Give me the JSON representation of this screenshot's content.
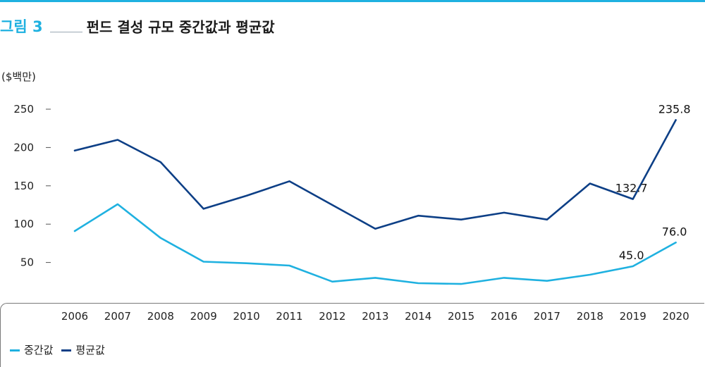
{
  "colors": {
    "accent": "#1fb1e0",
    "median": "#1fb1e0",
    "mean": "#0d3f86"
  },
  "header": {
    "figure_label": "그림 3",
    "title": "펀드 결성 규모 중간값과 평균값"
  },
  "chart_data": {
    "type": "line",
    "unit_label": "($백만)",
    "x": [
      "2006",
      "2007",
      "2008",
      "2009",
      "2010",
      "2011",
      "2012",
      "2013",
      "2014",
      "2015",
      "2016",
      "2017",
      "2018",
      "2019",
      "2020"
    ],
    "y_ticks": [
      "250",
      "200",
      "150",
      "100",
      "50"
    ],
    "series": [
      {
        "name": "중간값",
        "color": "#1fb1e0",
        "values": [
          91,
          126,
          82,
          51,
          49,
          46,
          25,
          30,
          23,
          22,
          30,
          26,
          34,
          45.0,
          76.0
        ],
        "labels": [
          {
            "index": 13,
            "text": "45.0"
          },
          {
            "index": 14,
            "text": "76.0"
          }
        ]
      },
      {
        "name": "평균값",
        "color": "#0d3f86",
        "values": [
          196,
          210,
          181,
          120,
          137,
          156,
          125,
          94,
          111,
          106,
          115,
          106,
          153,
          132.7,
          235.8
        ],
        "labels": [
          {
            "index": 13,
            "text": "132.7"
          },
          {
            "index": 14,
            "text": "235.8"
          }
        ]
      }
    ],
    "ylim": [
      0,
      250
    ],
    "grid": false,
    "legend_position": "bottom-left"
  }
}
